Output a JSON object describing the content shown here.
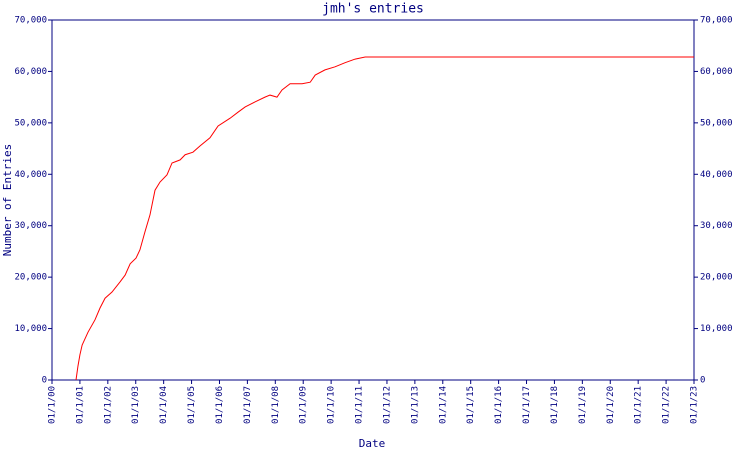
{
  "chart_data": {
    "type": "line",
    "title": "jmh's entries",
    "x_label": "Date",
    "y_label": "Number of Entries",
    "x": [
      0.86,
      0.93,
      1.0,
      1.08,
      1.29,
      1.54,
      1.72,
      1.9,
      2.15,
      2.44,
      2.62,
      2.8,
      3.01,
      3.15,
      3.33,
      3.51,
      3.69,
      3.87,
      4.12,
      4.3,
      4.59,
      4.77,
      5.05,
      5.3,
      5.66,
      5.95,
      6.38,
      6.67,
      6.92,
      7.28,
      7.63,
      7.81,
      8.06,
      8.24,
      8.53,
      8.96,
      9.25,
      9.43,
      9.78,
      10.14,
      10.5,
      10.86,
      11.22,
      23
    ],
    "series": [
      {
        "name": "Entries",
        "color": "#ff0000",
        "values": [
          0,
          2700,
          4900,
          6800,
          9300,
          11700,
          14000,
          15900,
          17100,
          19100,
          20400,
          22600,
          23700,
          25300,
          28800,
          32100,
          36900,
          38500,
          39900,
          42200,
          42800,
          43800,
          44300,
          45500,
          47100,
          49400,
          50900,
          52100,
          53100,
          54100,
          55000,
          55400,
          55000,
          56400,
          57600,
          57600,
          57900,
          59300,
          60300,
          60900,
          61700,
          62400,
          62800,
          62800
        ]
      }
    ],
    "xlim": [
      0,
      23
    ],
    "xticks": [
      {
        "value": 0,
        "label": "01/1/00"
      },
      {
        "value": 1,
        "label": "01/1/01"
      },
      {
        "value": 2,
        "label": "01/1/02"
      },
      {
        "value": 3,
        "label": "01/1/03"
      },
      {
        "value": 4,
        "label": "01/1/04"
      },
      {
        "value": 5,
        "label": "01/1/05"
      },
      {
        "value": 6,
        "label": "01/1/06"
      },
      {
        "value": 7,
        "label": "01/1/07"
      },
      {
        "value": 8,
        "label": "01/1/08"
      },
      {
        "value": 9,
        "label": "01/1/09"
      },
      {
        "value": 10,
        "label": "01/1/10"
      },
      {
        "value": 11,
        "label": "01/1/11"
      },
      {
        "value": 12,
        "label": "01/1/12"
      },
      {
        "value": 13,
        "label": "01/1/13"
      },
      {
        "value": 14,
        "label": "01/1/14"
      },
      {
        "value": 15,
        "label": "01/1/15"
      },
      {
        "value": 16,
        "label": "01/1/16"
      },
      {
        "value": 17,
        "label": "01/1/17"
      },
      {
        "value": 18,
        "label": "01/1/18"
      },
      {
        "value": 19,
        "label": "01/1/19"
      },
      {
        "value": 20,
        "label": "01/1/20"
      },
      {
        "value": 21,
        "label": "01/1/21"
      },
      {
        "value": 22,
        "label": "01/1/22"
      },
      {
        "value": 23,
        "label": "01/1/23"
      }
    ],
    "ylim": [
      0,
      70000
    ],
    "yticks": [
      0,
      {
        "value": 10000,
        "label": "10,000"
      },
      {
        "value": 20000,
        "label": "20,000"
      },
      {
        "value": 30000,
        "label": "30,000"
      },
      {
        "value": 40000,
        "label": "40,000"
      },
      {
        "value": 50000,
        "label": "50,000"
      },
      {
        "value": 60000,
        "label": "60,000"
      },
      {
        "value": 70000,
        "label": "70,000"
      }
    ],
    "axis_color": "#000080",
    "grid": false
  }
}
